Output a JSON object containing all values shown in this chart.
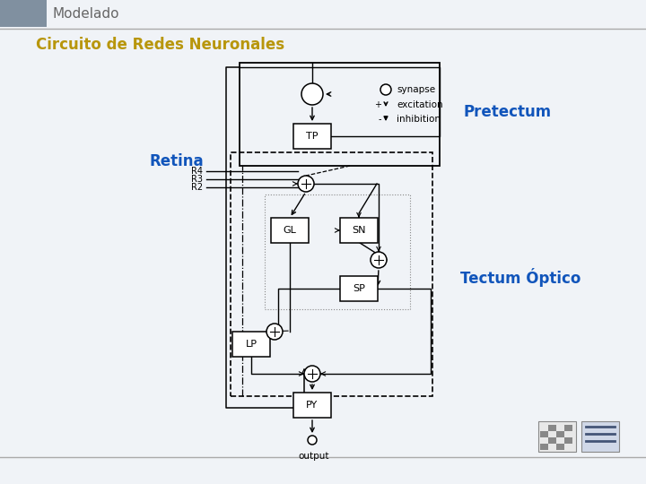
{
  "title": "Modelado",
  "subtitle": "Circuito de Redes Neuronales",
  "title_color": "#666666",
  "subtitle_color": "#B8960C",
  "bg_color": "#ffffff",
  "slide_bg": "#f0f3f7",
  "header_bar_color": "#7a8fa6",
  "label_retina": "Retina",
  "label_pretectum": "Pretectum",
  "label_tectum": "Tectum Óptico",
  "label_color_blue": "#1155BB",
  "header_line_color": "#aaaaaa",
  "footer_line_color": "#aaaaaa"
}
